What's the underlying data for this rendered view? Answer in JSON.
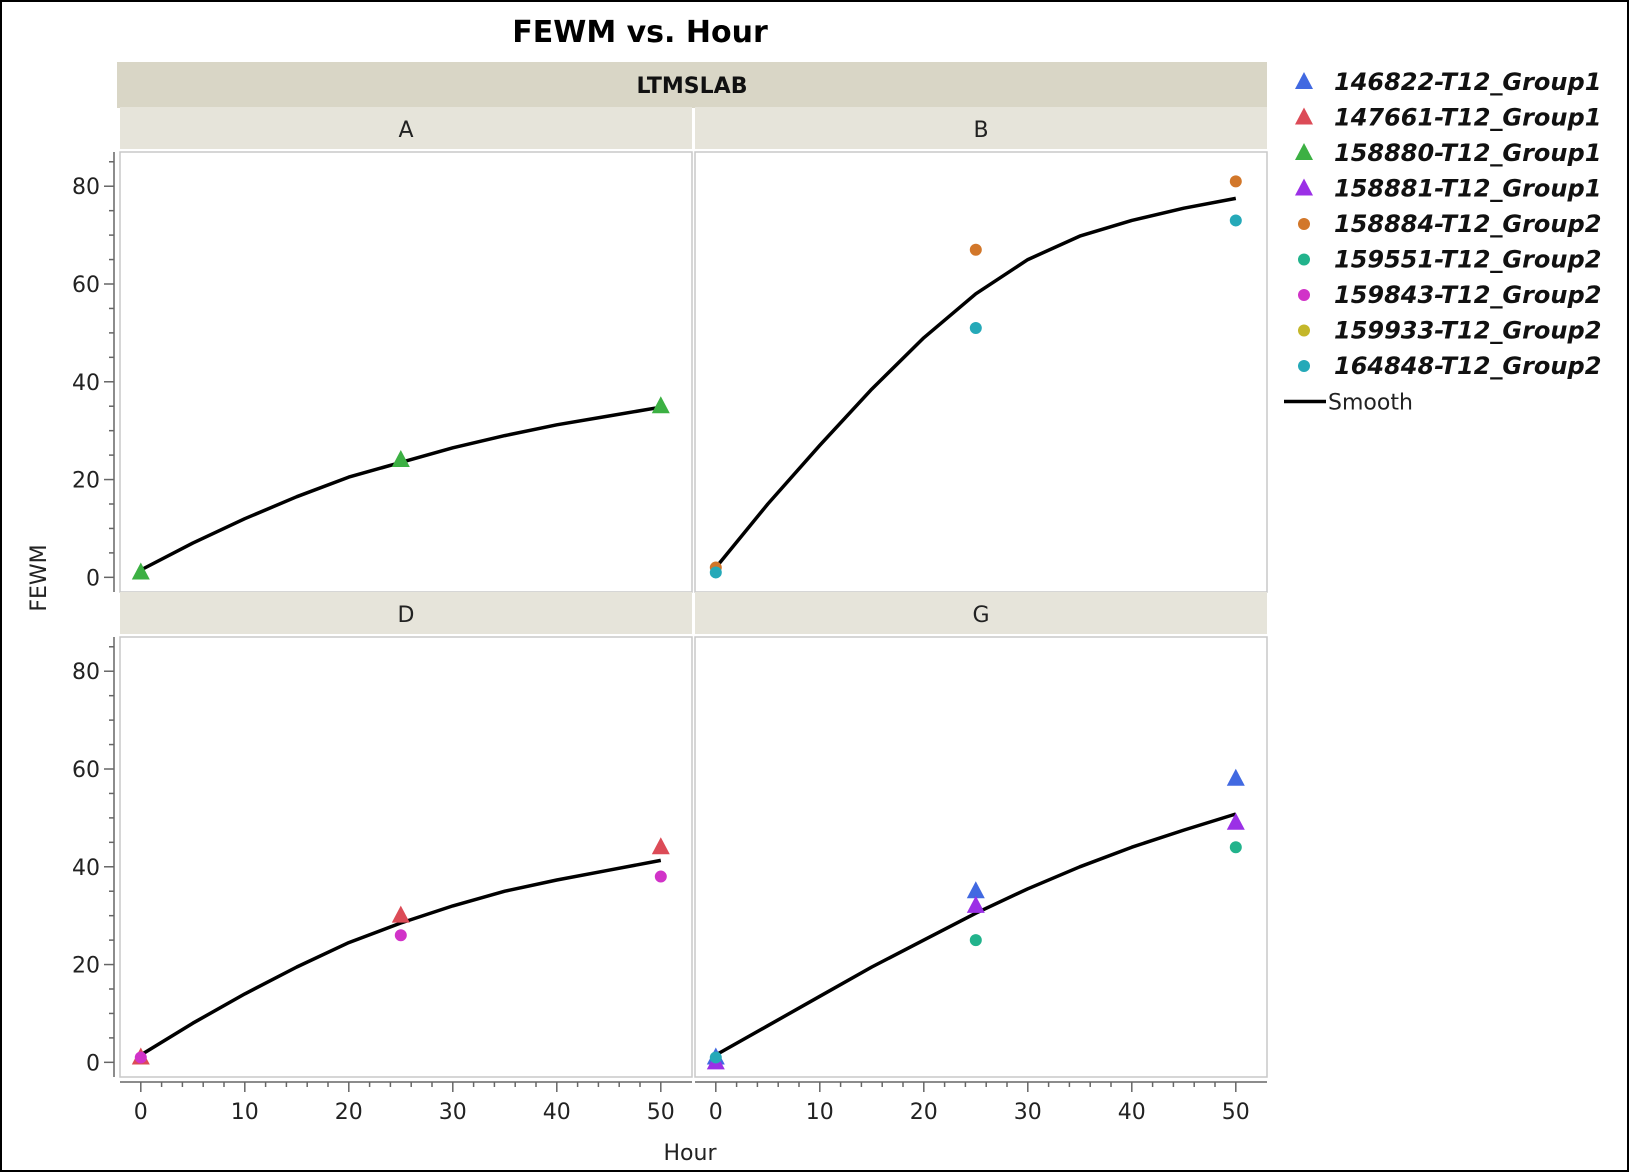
{
  "chart_data": {
    "type": "scatter",
    "title": "FEWM vs. Hour",
    "xlabel": "Hour",
    "ylabel": "FEWM",
    "group_label": "LTMSLAB",
    "xlim": [
      -2,
      53
    ],
    "ylim": [
      -3,
      87
    ],
    "xticks": [
      0,
      10,
      20,
      30,
      40,
      50
    ],
    "yticks": [
      0,
      20,
      40,
      60,
      80
    ],
    "legend_position": "right",
    "series": [
      {
        "name": "146822-T12_Group1",
        "marker": "triangle",
        "color": "#4169e1"
      },
      {
        "name": "147661-T12_Group1",
        "marker": "triangle",
        "color": "#dc4b57"
      },
      {
        "name": "158880-T12_Group1",
        "marker": "triangle",
        "color": "#3cb043"
      },
      {
        "name": "158881-T12_Group1",
        "marker": "triangle",
        "color": "#9b30e6"
      },
      {
        "name": "158884-T12_Group2",
        "marker": "circle",
        "color": "#d2772a"
      },
      {
        "name": "159551-T12_Group2",
        "marker": "circle",
        "color": "#22b38c"
      },
      {
        "name": "159843-T12_Group2",
        "marker": "circle",
        "color": "#d133c8"
      },
      {
        "name": "159933-T12_Group2",
        "marker": "circle",
        "color": "#c4b72a"
      },
      {
        "name": "164848-T12_Group2",
        "marker": "circle",
        "color": "#25a9b8"
      }
    ],
    "smooth_label": "Smooth",
    "smooth_color": "#000000",
    "panels": [
      {
        "label": "A",
        "points": [
          {
            "series": 2,
            "x": 0,
            "y": 1
          },
          {
            "series": 2,
            "x": 25,
            "y": 24
          },
          {
            "series": 2,
            "x": 50,
            "y": 35
          }
        ],
        "smooth": [
          [
            0,
            1.5
          ],
          [
            5,
            7
          ],
          [
            10,
            12
          ],
          [
            15,
            16.5
          ],
          [
            20,
            20.5
          ],
          [
            25,
            23.5
          ],
          [
            30,
            26.5
          ],
          [
            35,
            29
          ],
          [
            40,
            31.2
          ],
          [
            45,
            33
          ],
          [
            50,
            34.8
          ]
        ]
      },
      {
        "label": "B",
        "points": [
          {
            "series": 4,
            "x": 0,
            "y": 2
          },
          {
            "series": 8,
            "x": 0,
            "y": 1
          },
          {
            "series": 4,
            "x": 25,
            "y": 67
          },
          {
            "series": 8,
            "x": 25,
            "y": 51
          },
          {
            "series": 4,
            "x": 50,
            "y": 81
          },
          {
            "series": 8,
            "x": 50,
            "y": 73
          }
        ],
        "smooth": [
          [
            0,
            2
          ],
          [
            5,
            15
          ],
          [
            10,
            27
          ],
          [
            15,
            38.5
          ],
          [
            20,
            49
          ],
          [
            25,
            58
          ],
          [
            30,
            65
          ],
          [
            35,
            69.8
          ],
          [
            40,
            73
          ],
          [
            45,
            75.5
          ],
          [
            50,
            77.5
          ]
        ]
      },
      {
        "label": "D",
        "points": [
          {
            "series": 1,
            "x": 0,
            "y": 1
          },
          {
            "series": 6,
            "x": 0,
            "y": 1
          },
          {
            "series": 1,
            "x": 25,
            "y": 30
          },
          {
            "series": 6,
            "x": 25,
            "y": 26
          },
          {
            "series": 1,
            "x": 50,
            "y": 44
          },
          {
            "series": 6,
            "x": 50,
            "y": 38
          }
        ],
        "smooth": [
          [
            0,
            1.5
          ],
          [
            5,
            8
          ],
          [
            10,
            14
          ],
          [
            15,
            19.5
          ],
          [
            20,
            24.5
          ],
          [
            25,
            28.5
          ],
          [
            30,
            32
          ],
          [
            35,
            35
          ],
          [
            40,
            37.3
          ],
          [
            45,
            39.3
          ],
          [
            50,
            41.3
          ]
        ]
      },
      {
        "label": "G",
        "points": [
          {
            "series": 0,
            "x": 0,
            "y": 1
          },
          {
            "series": 3,
            "x": 0,
            "y": 0
          },
          {
            "series": 8,
            "x": 0,
            "y": 1
          },
          {
            "series": 0,
            "x": 25,
            "y": 35
          },
          {
            "series": 3,
            "x": 25,
            "y": 32
          },
          {
            "series": 5,
            "x": 25,
            "y": 25
          },
          {
            "series": 0,
            "x": 50,
            "y": 58
          },
          {
            "series": 3,
            "x": 50,
            "y": 49
          },
          {
            "series": 5,
            "x": 50,
            "y": 44
          }
        ],
        "smooth": [
          [
            0,
            1.5
          ],
          [
            5,
            7.5
          ],
          [
            10,
            13.5
          ],
          [
            15,
            19.5
          ],
          [
            20,
            25
          ],
          [
            25,
            30.5
          ],
          [
            30,
            35.5
          ],
          [
            35,
            40
          ],
          [
            40,
            44
          ],
          [
            45,
            47.5
          ],
          [
            50,
            50.8
          ]
        ]
      }
    ]
  }
}
